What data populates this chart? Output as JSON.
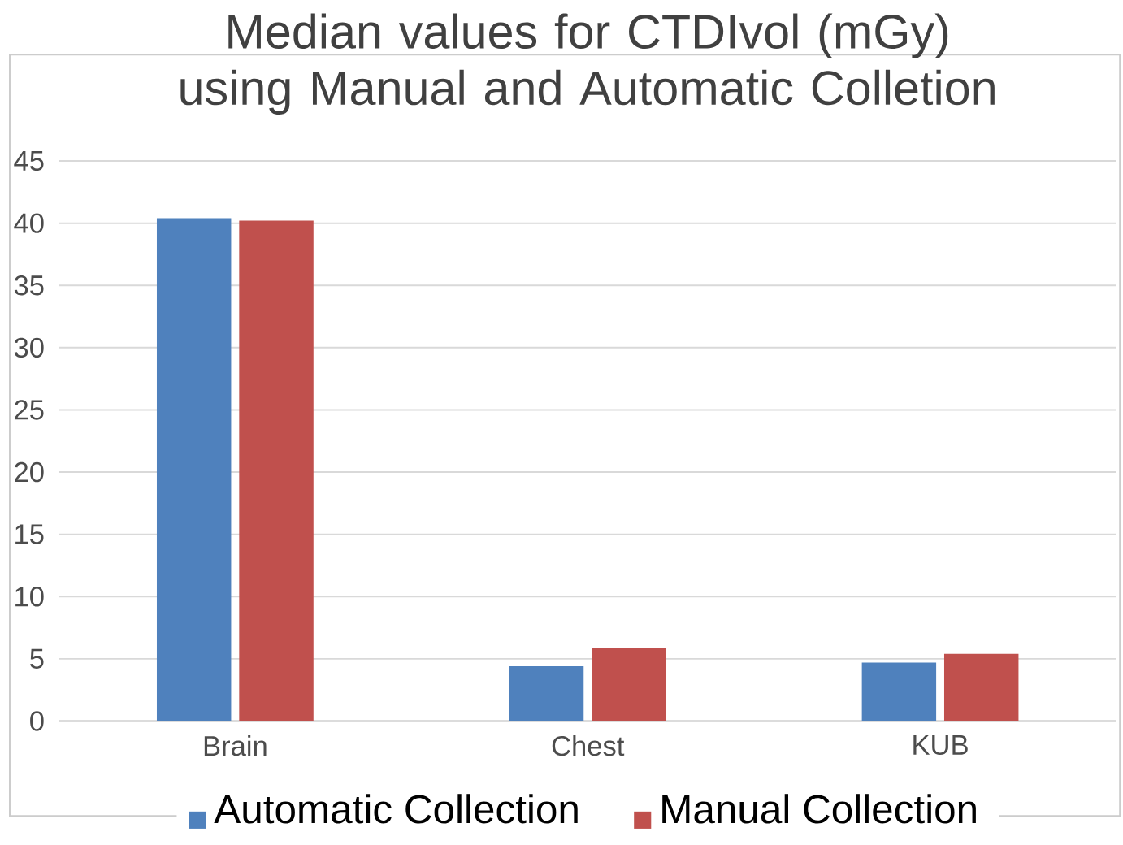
{
  "chart_data": {
    "type": "bar",
    "title": "Median values for CTDIvol (mGy) using Manual and Automatic Colletion",
    "categories": [
      "Brain",
      "Chest",
      "KUB"
    ],
    "series": [
      {
        "name": "Automatic  Collection",
        "color": "#4f81bd",
        "values": [
          40.4,
          4.4,
          4.7
        ]
      },
      {
        "name": "Manual Collection",
        "color": "#c0504d",
        "values": [
          40.2,
          5.9,
          5.4
        ]
      }
    ],
    "ylim": [
      0,
      45
    ],
    "yticks": [
      0,
      5,
      10,
      15,
      20,
      25,
      30,
      35,
      40,
      45
    ],
    "grid": "y",
    "legend": "bottom"
  }
}
